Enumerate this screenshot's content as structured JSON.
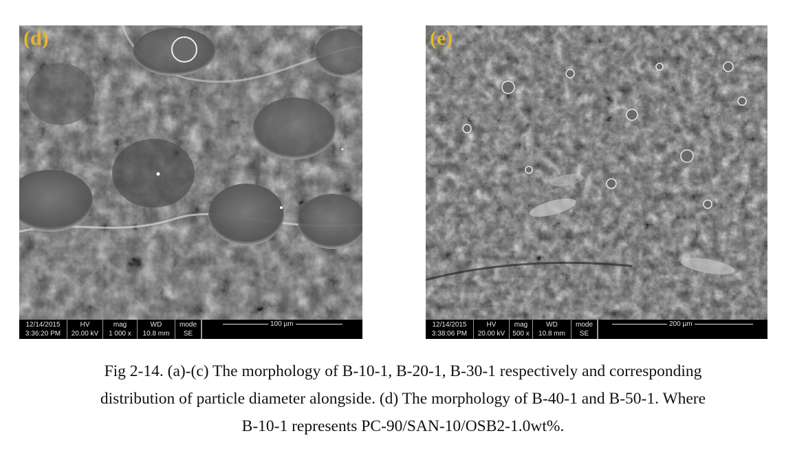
{
  "figure": {
    "panels": [
      {
        "label": "(d)",
        "databar": {
          "date_col": [
            "12/14/2015",
            "3:36:20 PM"
          ],
          "hv_col": [
            "HV",
            "20.00 kV"
          ],
          "mag_col": [
            "mag",
            "1 000 x"
          ],
          "wd_col": [
            "WD",
            "10.8 mm"
          ],
          "mode_col": [
            "mode",
            "SE"
          ],
          "scale": "100 µm"
        }
      },
      {
        "label": "(e)",
        "databar": {
          "date_col": [
            "12/14/2015",
            "3:38:06 PM"
          ],
          "hv_col": [
            "HV",
            "20.00 kV"
          ],
          "mag_col": [
            "mag",
            "500 x"
          ],
          "wd_col": [
            "WD",
            "10.8 mm"
          ],
          "mode_col": [
            "mode",
            "SE"
          ],
          "scale": "200 µm"
        }
      }
    ],
    "caption_lines": [
      "Fig 2-14. (a)-(c) The morphology of B-10-1, B-20-1, B-30-1 respectively and corresponding",
      "distribution of particle diameter alongside. (d) The morphology of B-40-1 and B-50-1. Where",
      "B-10-1 represents PC-90/SAN-10/OSB2-1.0wt%."
    ]
  }
}
